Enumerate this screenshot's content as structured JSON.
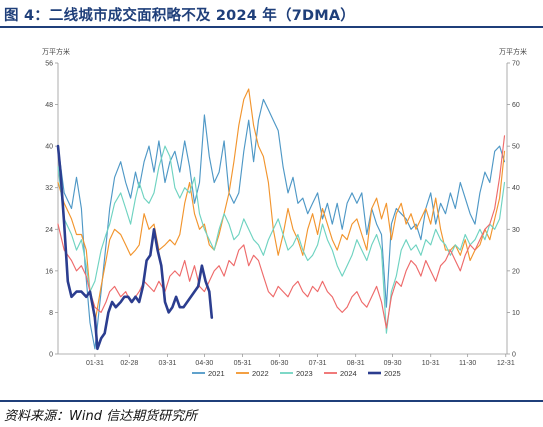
{
  "title": "图 4：二线城市成交面积略不及 2024 年（7DMA）",
  "source": "资料来源：Wind 信达期货研究所",
  "chart_data": {
    "type": "line",
    "left_axis": {
      "unit": "万平方米",
      "ylim": [
        0,
        56
      ],
      "ticks": [
        "0",
        "8",
        "16",
        "24",
        "32",
        "40",
        "48",
        "56"
      ]
    },
    "right_axis": {
      "unit": "万平方米",
      "ylim": [
        0,
        70
      ],
      "ticks": [
        "0",
        "10",
        "20",
        "30",
        "40",
        "50",
        "60",
        "70"
      ]
    },
    "x_ticks": [
      "01-31",
      "02-28",
      "03-31",
      "04-30",
      "05-31",
      "06-30",
      "07-31",
      "08-31",
      "09-30",
      "10-31",
      "11-30",
      "12-31"
    ],
    "legend": [
      "2021",
      "2022",
      "2023",
      "2024",
      "2025"
    ],
    "colors": {
      "2021": "#4f98c6",
      "2022": "#f2952e",
      "2023": "#6fd3c1",
      "2024": "#ee6b6b",
      "2025": "#2b3d8f"
    },
    "series": [
      {
        "name": "2021",
        "axis": "left",
        "x": [
          1,
          6,
          12,
          16,
          20,
          23,
          27,
          31,
          36,
          40,
          43,
          47,
          52,
          56,
          60,
          64,
          67,
          71,
          75,
          79,
          83,
          88,
          92,
          96,
          100,
          104,
          108,
          112,
          116,
          120,
          124,
          128,
          132,
          136,
          140,
          144,
          148,
          152,
          156,
          160,
          164,
          168,
          172,
          176,
          180,
          184,
          188,
          192,
          196,
          200,
          204,
          208,
          212,
          216,
          220,
          224,
          228,
          232,
          236,
          240,
          244,
          248,
          252,
          256,
          260,
          264,
          268,
          272,
          276,
          280,
          284,
          288,
          292,
          296,
          300,
          304,
          308,
          312,
          316,
          320,
          324,
          328,
          332,
          336,
          340,
          344,
          348,
          352,
          356,
          360,
          364
        ],
        "values": [
          40,
          31,
          28,
          34,
          28,
          17,
          6,
          1,
          12,
          21,
          28,
          34,
          37,
          33,
          30,
          35,
          32,
          37,
          40,
          35,
          41,
          33,
          37,
          39,
          35,
          41,
          36,
          29,
          33,
          46,
          38,
          33,
          35,
          41,
          31,
          29,
          31,
          39,
          45,
          37,
          45,
          49,
          47,
          45,
          43,
          36,
          31,
          34,
          29,
          30,
          27,
          29,
          31,
          26,
          29,
          25,
          29,
          24,
          29,
          31,
          29,
          31,
          23,
          28,
          25,
          23,
          9,
          25,
          28,
          27,
          26,
          24,
          25,
          22,
          28,
          31,
          25,
          29,
          27,
          31,
          28,
          33,
          30,
          27,
          25,
          31,
          35,
          33,
          39,
          40,
          37
        ]
      },
      {
        "name": "2022",
        "axis": "left",
        "x": [
          1,
          6,
          12,
          16,
          20,
          24,
          27,
          31,
          36,
          40,
          43,
          47,
          52,
          56,
          60,
          64,
          67,
          71,
          75,
          79,
          83,
          88,
          92,
          96,
          100,
          104,
          108,
          112,
          116,
          120,
          124,
          128,
          132,
          136,
          140,
          144,
          148,
          152,
          156,
          160,
          164,
          168,
          172,
          176,
          180,
          184,
          188,
          192,
          196,
          200,
          204,
          208,
          212,
          216,
          220,
          224,
          228,
          232,
          236,
          240,
          244,
          248,
          252,
          256,
          260,
          264,
          268,
          272,
          276,
          280,
          284,
          288,
          292,
          296,
          300,
          304,
          308,
          312,
          316,
          320,
          324,
          328,
          332,
          336,
          340,
          344,
          348,
          352,
          356,
          360,
          364
        ],
        "values": [
          33,
          29,
          26,
          23,
          23,
          20,
          12,
          6,
          13,
          18,
          22,
          24,
          23,
          21,
          19,
          20,
          21,
          27,
          24,
          25,
          20,
          21,
          22,
          21,
          23,
          29,
          33,
          27,
          24,
          25,
          21,
          20,
          23,
          27,
          31,
          37,
          44,
          49,
          51,
          44,
          40,
          38,
          33,
          24,
          19,
          23,
          28,
          24,
          22,
          19,
          24,
          27,
          23,
          28,
          25,
          22,
          20,
          23,
          22,
          25,
          26,
          23,
          20,
          28,
          30,
          26,
          29,
          22,
          27,
          29,
          25,
          27,
          24,
          26,
          28,
          25,
          30,
          24,
          20,
          20,
          21,
          19,
          22,
          18,
          20,
          21,
          24,
          22,
          26,
          30,
          39
        ]
      },
      {
        "name": "2023",
        "axis": "left",
        "x": [
          1,
          6,
          12,
          16,
          20,
          24,
          27,
          31,
          36,
          40,
          43,
          47,
          52,
          56,
          60,
          64,
          67,
          71,
          75,
          79,
          83,
          88,
          92,
          96,
          100,
          104,
          108,
          112,
          116,
          120,
          124,
          128,
          132,
          136,
          140,
          144,
          148,
          152,
          156,
          160,
          164,
          168,
          172,
          176,
          180,
          184,
          188,
          192,
          196,
          200,
          204,
          208,
          212,
          216,
          220,
          224,
          228,
          232,
          236,
          240,
          244,
          248,
          252,
          256,
          260,
          264,
          268,
          272,
          276,
          280,
          284,
          288,
          292,
          296,
          300,
          304,
          308,
          312,
          316,
          320,
          324,
          328,
          332,
          336,
          340,
          344,
          348,
          352,
          356,
          360,
          364
        ],
        "values": [
          36,
          26,
          23,
          20,
          22,
          17,
          12,
          14,
          20,
          23,
          25,
          29,
          31,
          28,
          25,
          30,
          33,
          30,
          29,
          31,
          36,
          40,
          38,
          32,
          30,
          32,
          31,
          34,
          27,
          24,
          22,
          20,
          24,
          27,
          25,
          22,
          23,
          26,
          24,
          22,
          21,
          19,
          22,
          24,
          26,
          23,
          20,
          21,
          23,
          20,
          18,
          19,
          21,
          25,
          22,
          20,
          17,
          15,
          17,
          19,
          22,
          20,
          18,
          21,
          23,
          20,
          4,
          12,
          15,
          20,
          22,
          20,
          21,
          19,
          22,
          21,
          24,
          22,
          21,
          19,
          21,
          20,
          23,
          21,
          22,
          24,
          22,
          25,
          24,
          26,
          33
        ]
      },
      {
        "name": "2024",
        "axis": "left",
        "x": [
          1,
          6,
          12,
          16,
          20,
          24,
          27,
          31,
          36,
          40,
          43,
          47,
          52,
          56,
          60,
          64,
          67,
          71,
          75,
          79,
          83,
          88,
          92,
          96,
          100,
          104,
          108,
          112,
          116,
          120,
          124,
          128,
          132,
          136,
          140,
          144,
          148,
          152,
          156,
          160,
          164,
          168,
          172,
          176,
          180,
          184,
          188,
          192,
          196,
          200,
          204,
          208,
          212,
          216,
          220,
          224,
          228,
          232,
          236,
          240,
          244,
          248,
          252,
          256,
          260,
          264,
          268,
          272,
          276,
          280,
          284,
          288,
          292,
          296,
          300,
          304,
          308,
          312,
          316,
          320,
          324,
          328,
          332,
          336,
          340,
          344,
          348,
          352,
          356,
          360,
          364
        ],
        "values": [
          25,
          20,
          18,
          16,
          17,
          15,
          12,
          9,
          8,
          10,
          12,
          13,
          11,
          12,
          10,
          11,
          12,
          14,
          13,
          12,
          14,
          12,
          15,
          16,
          15,
          18,
          14,
          17,
          13,
          12,
          14,
          16,
          17,
          15,
          18,
          17,
          20,
          21,
          17,
          19,
          18,
          15,
          12,
          11,
          13,
          12,
          11,
          13,
          14,
          12,
          11,
          13,
          12,
          14,
          12,
          11,
          9,
          8,
          9,
          11,
          12,
          10,
          9,
          11,
          13,
          10,
          5,
          11,
          14,
          13,
          16,
          18,
          17,
          15,
          18,
          16,
          14,
          17,
          18,
          20,
          18,
          16,
          19,
          21,
          20,
          22,
          24,
          25,
          28,
          34,
          42
        ]
      },
      {
        "name": "2025",
        "axis": "left",
        "x": [
          1,
          3,
          6,
          9,
          12,
          16,
          20,
          24,
          27,
          31,
          33,
          36,
          39,
          42,
          45,
          48,
          52,
          55,
          58,
          61,
          64,
          67,
          70,
          73,
          76,
          79,
          82,
          85,
          88,
          91,
          94,
          97,
          100,
          103,
          106,
          109,
          112,
          115,
          118,
          121,
          124,
          126
        ],
        "values": [
          40,
          35,
          25,
          14,
          11,
          12,
          12,
          11,
          12,
          7,
          1,
          3,
          4,
          8,
          10,
          9,
          10,
          11,
          11,
          10,
          11,
          10,
          13,
          18,
          19,
          24,
          20,
          17,
          10,
          8,
          9,
          11,
          9,
          9,
          10,
          11,
          12,
          13,
          17,
          14,
          12,
          7
        ]
      }
    ]
  }
}
